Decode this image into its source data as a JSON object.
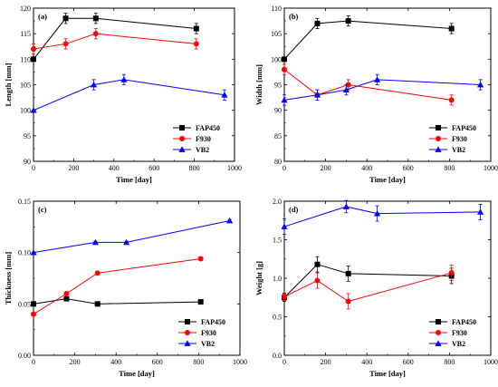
{
  "colors": {
    "FAP450": "#000000",
    "F930": "#ff0000",
    "VB2": "#0000ff"
  },
  "chart_data": [
    {
      "type": "line",
      "panel_label": "(a)",
      "xlabel": "Time [day]",
      "ylabel": "Length [mm]",
      "xlim": [
        0,
        1000
      ],
      "ylim": [
        90,
        120
      ],
      "xticks": [
        0,
        200,
        400,
        600,
        800,
        1000
      ],
      "yticks": [
        90,
        95,
        100,
        105,
        110,
        115,
        120
      ],
      "legend_position": "bottom-right",
      "series": [
        {
          "name": "FAP450",
          "marker": "square",
          "x": [
            0,
            160,
            310,
            810
          ],
          "y": [
            110,
            118,
            118,
            116
          ],
          "err": [
            0,
            1,
            1,
            1
          ]
        },
        {
          "name": "F930",
          "marker": "circle",
          "x": [
            0,
            160,
            310,
            810
          ],
          "y": [
            112,
            113,
            115,
            113
          ],
          "err": [
            1,
            1,
            1,
            1
          ]
        },
        {
          "name": "VB2",
          "marker": "triangle",
          "x": [
            0,
            300,
            450,
            950
          ],
          "y": [
            100,
            105,
            106,
            103
          ],
          "err": [
            0,
            1,
            1,
            1
          ]
        }
      ]
    },
    {
      "type": "line",
      "panel_label": "(b)",
      "xlabel": "Time [day]",
      "ylabel": "Width [mm]",
      "xlim": [
        0,
        1000
      ],
      "ylim": [
        80,
        110
      ],
      "xticks": [
        0,
        200,
        400,
        600,
        800,
        1000
      ],
      "yticks": [
        80,
        85,
        90,
        95,
        100,
        105,
        110
      ],
      "legend_position": "bottom-right",
      "series": [
        {
          "name": "FAP450",
          "marker": "square",
          "x": [
            0,
            160,
            310,
            810
          ],
          "y": [
            100,
            107,
            107.5,
            106
          ],
          "err": [
            0,
            1,
            1,
            1
          ]
        },
        {
          "name": "F930",
          "marker": "circle",
          "x": [
            0,
            160,
            310,
            810
          ],
          "y": [
            98,
            93,
            95,
            92
          ],
          "err": [
            1,
            1,
            1,
            1
          ]
        },
        {
          "name": "VB2",
          "marker": "triangle",
          "x": [
            0,
            160,
            300,
            450,
            950
          ],
          "y": [
            92,
            93,
            94,
            96,
            95
          ],
          "err": [
            1,
            1,
            1,
            1,
            1
          ]
        }
      ]
    },
    {
      "type": "line",
      "panel_label": "(c)",
      "xlabel": "Time [day]",
      "ylabel": "Thickness [mm]",
      "xlim": [
        0,
        1000
      ],
      "ylim": [
        0,
        0.15
      ],
      "xticks": [
        0,
        200,
        400,
        600,
        800,
        1000
      ],
      "yticks": [
        0.0,
        0.05,
        0.1,
        0.15
      ],
      "ytick_labels": [
        "0.00",
        "0.05",
        "0.10",
        "0.15"
      ],
      "legend_position": "bottom-right",
      "series": [
        {
          "name": "FAP450",
          "marker": "square",
          "x": [
            0,
            160,
            310,
            810
          ],
          "y": [
            0.05,
            0.055,
            0.05,
            0.052
          ],
          "err": [
            0,
            0.001,
            0.001,
            0.001
          ]
        },
        {
          "name": "F930",
          "marker": "circle",
          "x": [
            0,
            160,
            310,
            810
          ],
          "y": [
            0.04,
            0.06,
            0.08,
            0.094
          ],
          "err": [
            0,
            0.001,
            0.001,
            0.001
          ]
        },
        {
          "name": "VB2",
          "marker": "triangle",
          "x": [
            0,
            300,
            450,
            950
          ],
          "y": [
            0.1,
            0.11,
            0.11,
            0.131
          ],
          "err": [
            0,
            0.001,
            0.001,
            0.001
          ]
        }
      ]
    },
    {
      "type": "line",
      "panel_label": "(d)",
      "xlabel": "Time [day]",
      "ylabel": "Weight [g]",
      "xlim": [
        0,
        1000
      ],
      "ylim": [
        0,
        2.0
      ],
      "xticks": [
        0,
        200,
        400,
        600,
        800,
        1000
      ],
      "yticks": [
        0.0,
        0.5,
        1.0,
        1.5,
        2.0
      ],
      "ytick_labels": [
        "0.0",
        "0.5",
        "1.0",
        "1.5",
        "2.0"
      ],
      "legend_position": "bottom-right",
      "series": [
        {
          "name": "FAP450",
          "marker": "square",
          "x": [
            0,
            160,
            310,
            810
          ],
          "y": [
            0.75,
            1.18,
            1.06,
            1.03
          ],
          "err": [
            0.05,
            0.1,
            0.1,
            0.1
          ]
        },
        {
          "name": "F930",
          "marker": "circle",
          "x": [
            0,
            160,
            310,
            810
          ],
          "y": [
            0.76,
            0.97,
            0.7,
            1.07
          ],
          "err": [
            0.05,
            0.1,
            0.1,
            0.1
          ]
        },
        {
          "name": "VB2",
          "marker": "triangle",
          "x": [
            0,
            300,
            450,
            950
          ],
          "y": [
            1.67,
            1.93,
            1.84,
            1.86
          ],
          "err": [
            0.1,
            0.08,
            0.1,
            0.1
          ]
        }
      ]
    }
  ]
}
